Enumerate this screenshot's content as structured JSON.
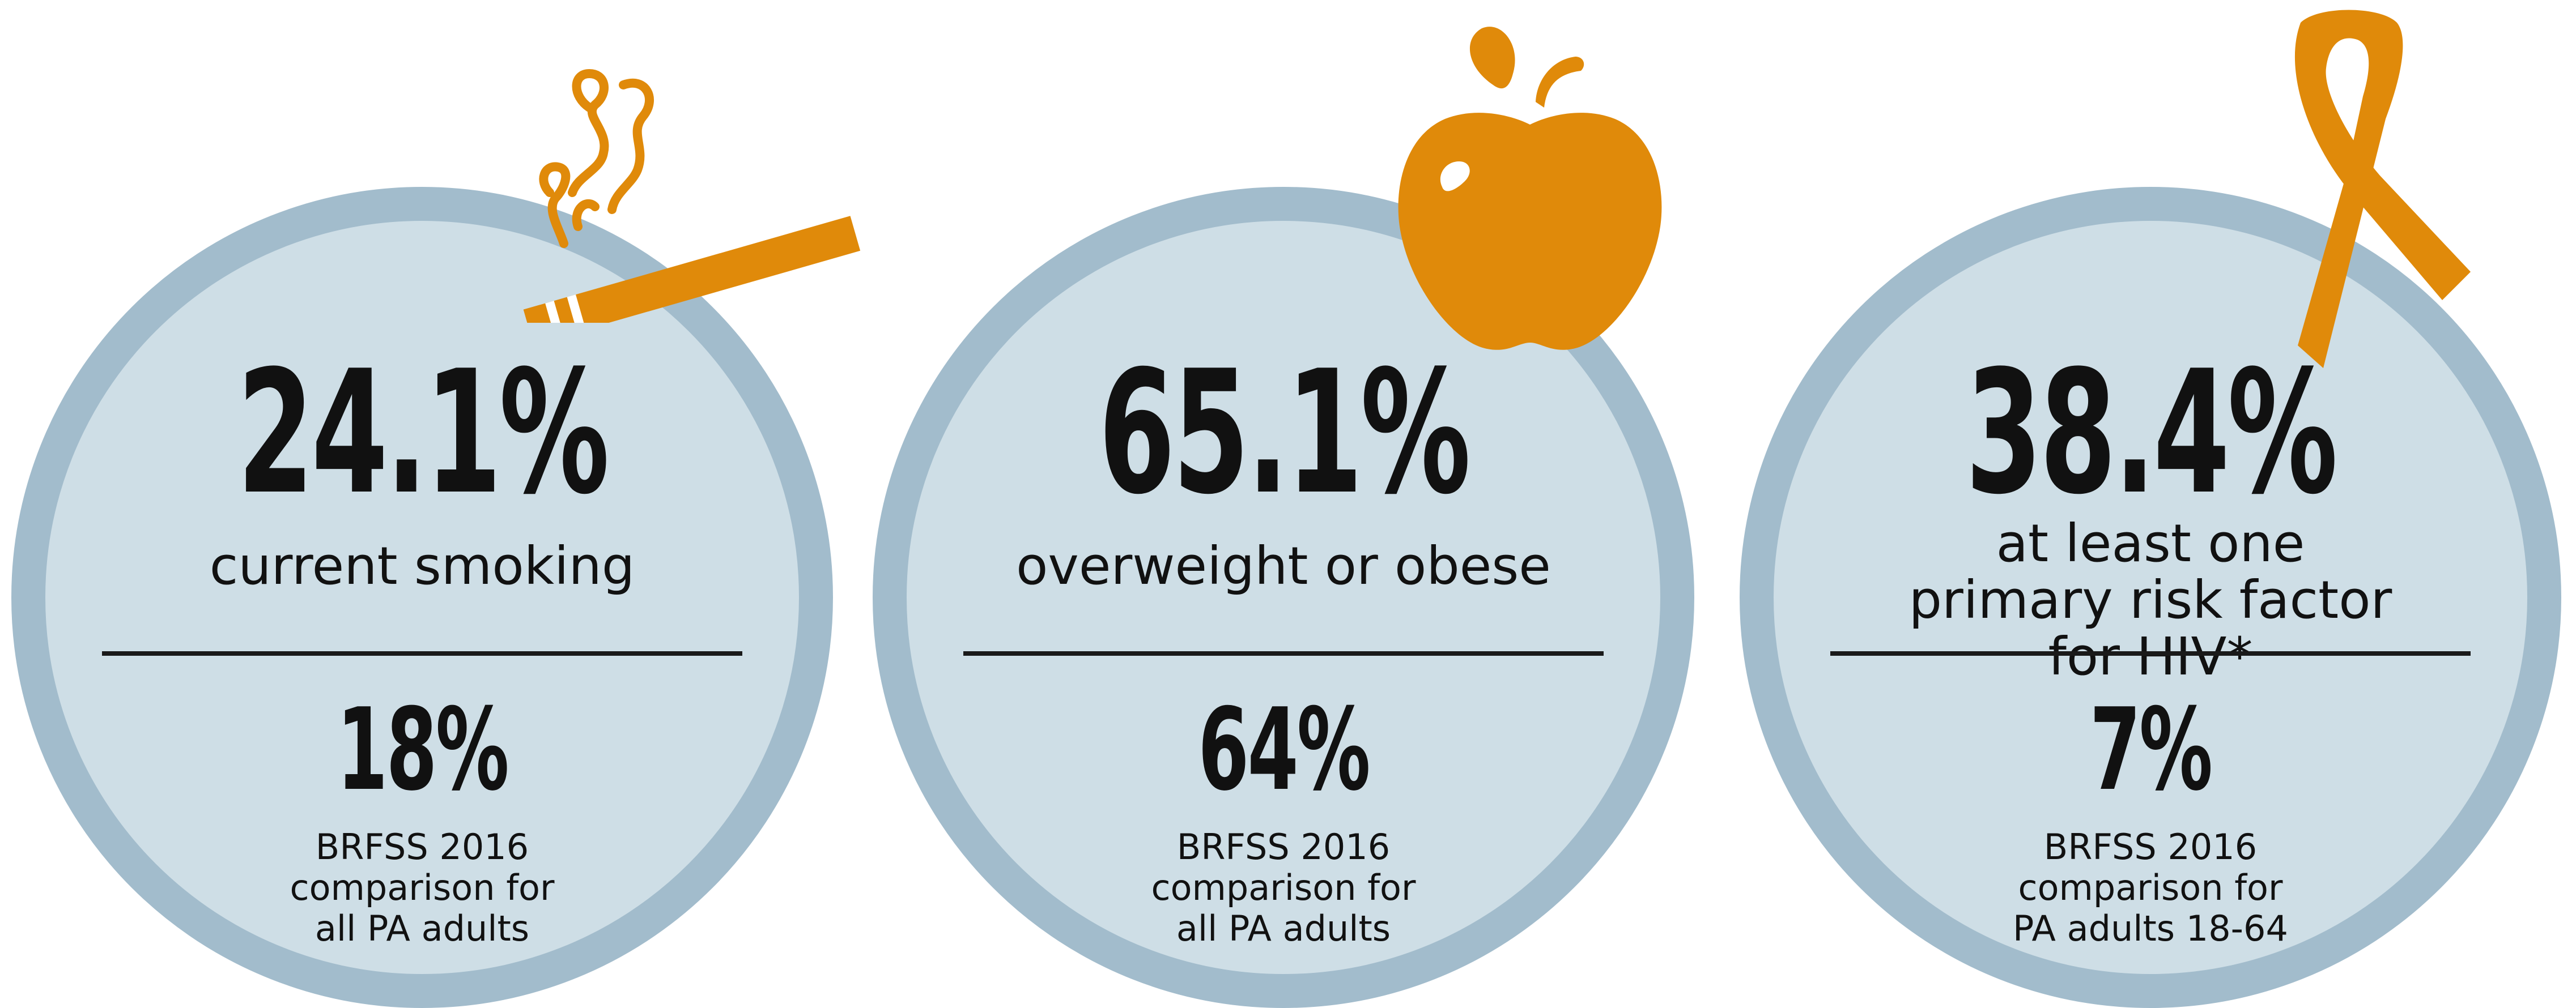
{
  "colors": {
    "circle_fill": "#cedee6",
    "circle_border": "#a2bccc",
    "icon_accent": "#e08a0a",
    "text": "#111111"
  },
  "cards": [
    {
      "icon": "cigarette-icon",
      "value": "24.1%",
      "label": "current smoking",
      "comparison_value": "18%",
      "comparison_note": [
        "BRFSS 2016",
        "comparison for",
        "all PA adults"
      ]
    },
    {
      "icon": "apple-icon",
      "value": "65.1%",
      "label": "overweight or obese",
      "comparison_value": "64%",
      "comparison_note": [
        "BRFSS 2016",
        "comparison for",
        "all PA adults"
      ]
    },
    {
      "icon": "awareness-ribbon-icon",
      "value": "38.4%",
      "label": "at least one primary risk factor for HIV*",
      "comparison_value": "7%",
      "comparison_note": [
        "BRFSS 2016",
        "comparison for",
        "PA adults 18-64"
      ]
    }
  ]
}
